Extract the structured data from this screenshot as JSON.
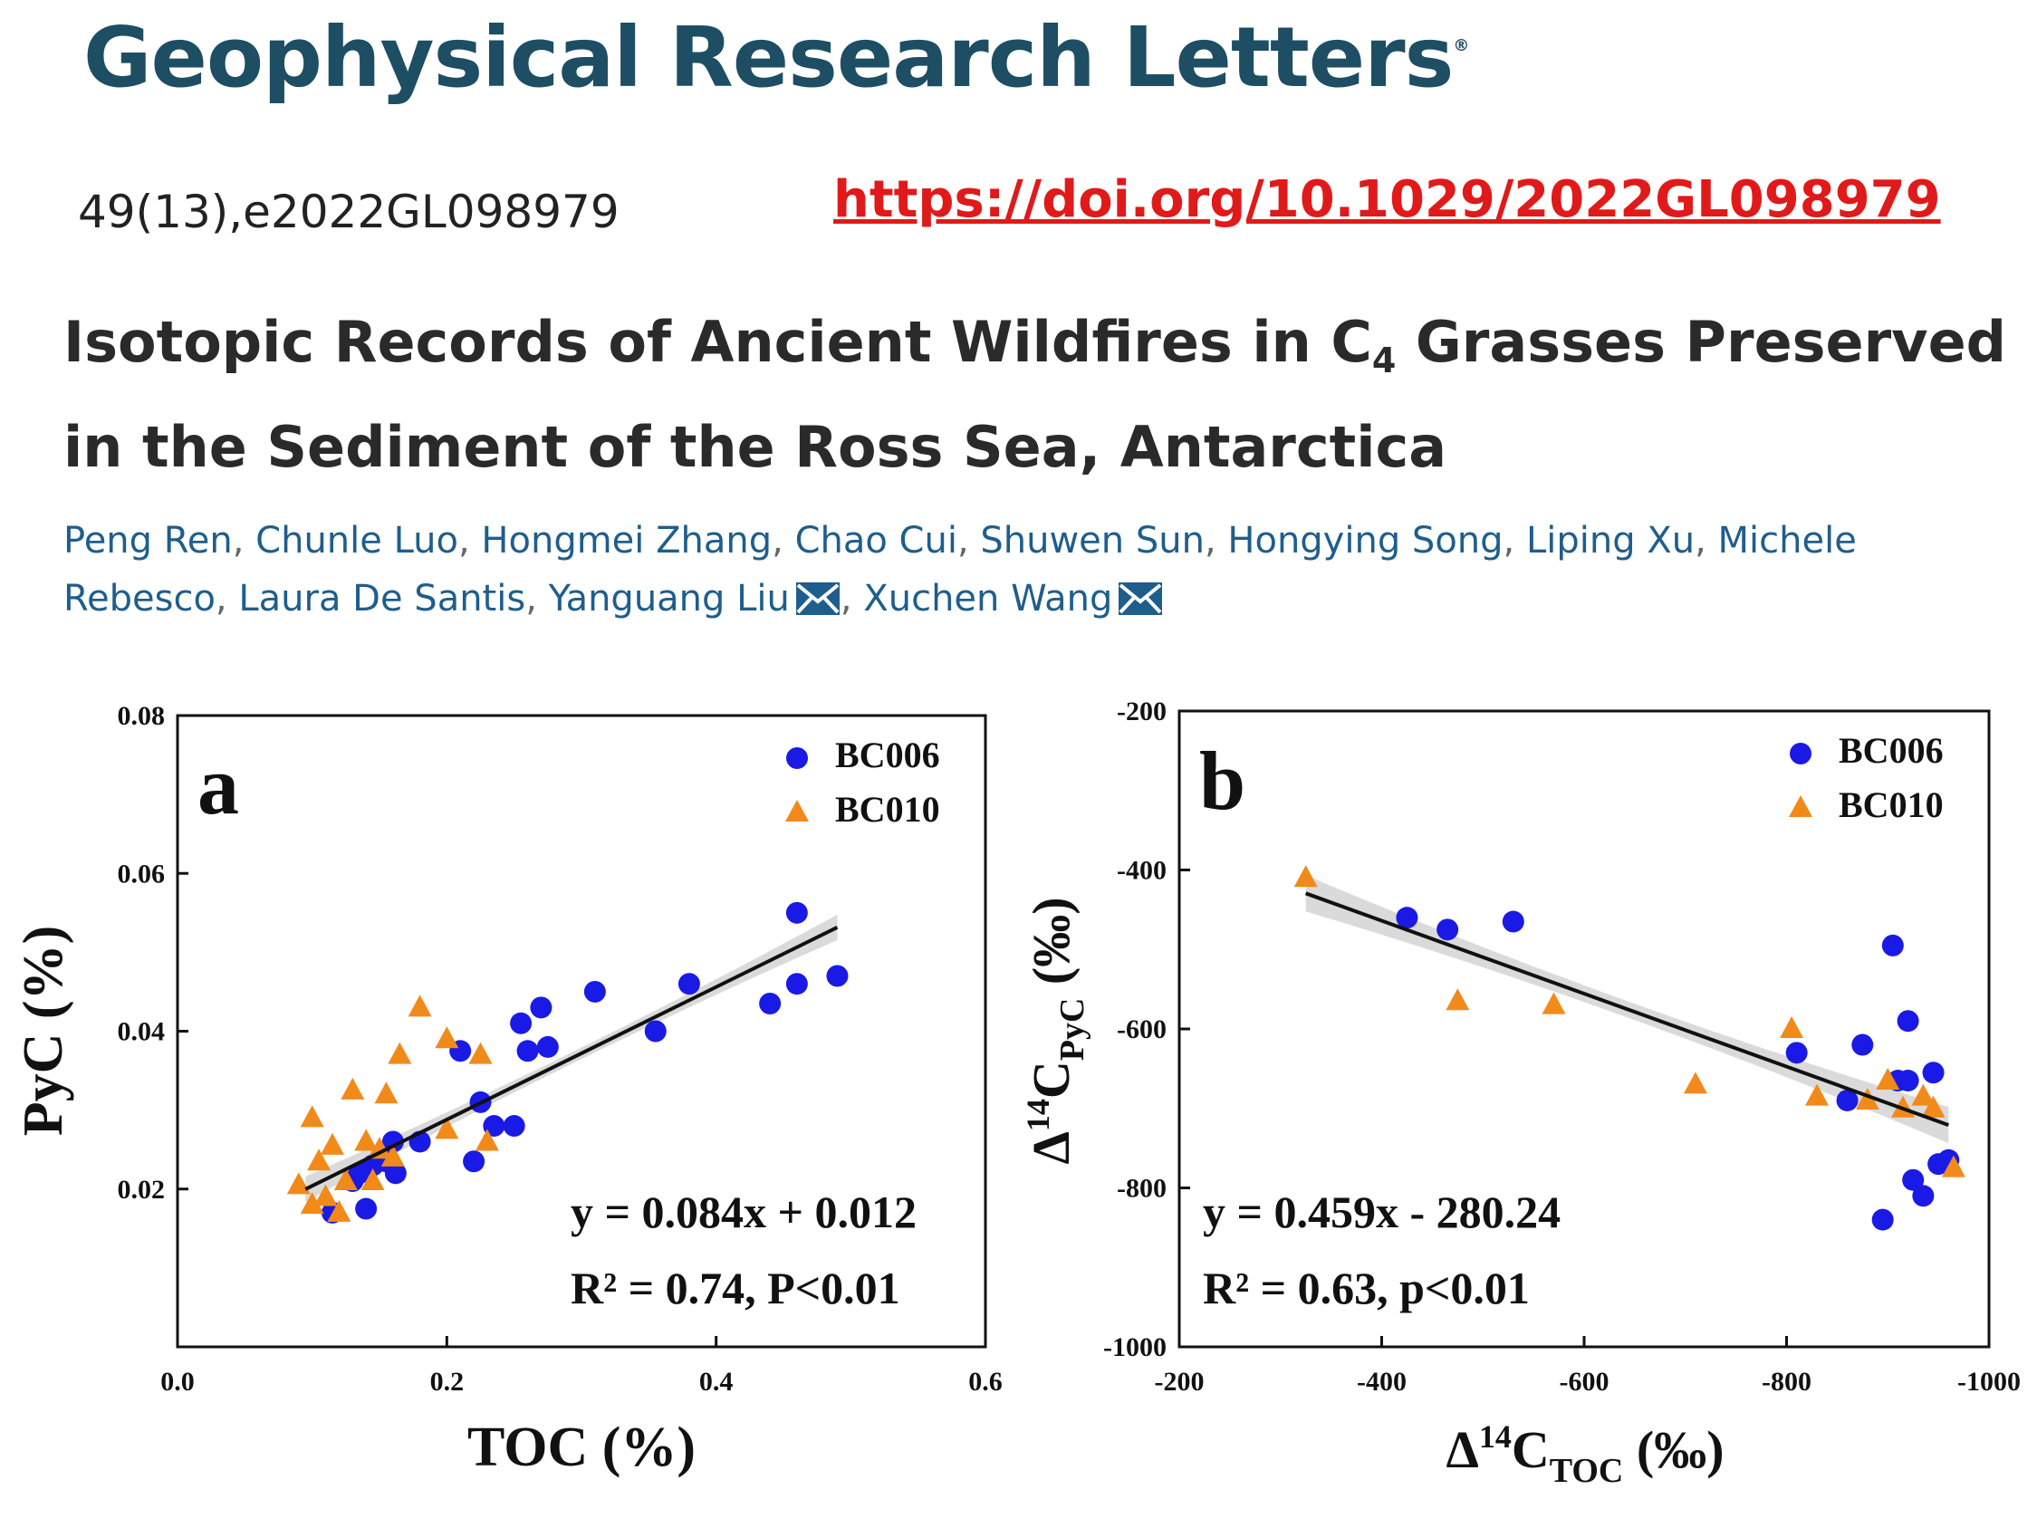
{
  "header": {
    "journal": "Geophysical Research Letters",
    "journal_mark": "®",
    "citation": "49(13),e2022GL098979",
    "doi": "https://doi.org/10.1029/2022GL098979"
  },
  "article": {
    "title_before": "Isotopic Records of Ancient Wildfires in C",
    "title_sub": "4",
    "title_after": " Grasses Preserved in the Sediment of the Ross Sea, Antarctica",
    "authors": [
      "Peng Ren",
      "Chunle Luo",
      "Hongmei Zhang",
      "Chao Cui",
      "Shuwen Sun",
      "Hongying Song",
      "Liping Xu",
      "Michele Rebesco",
      "Laura De Santis",
      "Yanguang Liu",
      "Xuchen Wang"
    ],
    "corresponding": [
      "Yanguang Liu",
      "Xuchen Wang"
    ],
    "icons": {
      "corresponding": "envelope-icon"
    },
    "colors": {
      "link": "#1e5e8c",
      "doi": "#e01a1a",
      "journal": "#1d4e63"
    }
  },
  "chart_data": [
    {
      "type": "scatter",
      "panel": "a",
      "xlabel": "TOC (%)",
      "ylabel": "PyC (%)",
      "xlim": [
        0.0,
        0.6
      ],
      "ylim": [
        0.0,
        0.08
      ],
      "xticks": [
        "0.0",
        "0.2",
        "0.4",
        "0.6"
      ],
      "yticks": [
        "0.02",
        "0.04",
        "0.06",
        "0.08"
      ],
      "legend": "top-right",
      "equation": "y = 0.084x + 0.012",
      "stats": "R² = 0.74, P<0.01",
      "fit": {
        "slope": 0.084,
        "intercept": 0.012,
        "x": [
          0.095,
          0.49
        ]
      },
      "series": [
        {
          "name": "BC006",
          "marker": "circle",
          "color": "#1a1ae6",
          "points": [
            [
              0.115,
              0.017
            ],
            [
              0.14,
              0.0175
            ],
            [
              0.13,
              0.021
            ],
            [
              0.135,
              0.022
            ],
            [
              0.145,
              0.023
            ],
            [
              0.155,
              0.0235
            ],
            [
              0.16,
              0.026
            ],
            [
              0.162,
              0.022
            ],
            [
              0.18,
              0.026
            ],
            [
              0.21,
              0.0375
            ],
            [
              0.22,
              0.0235
            ],
            [
              0.225,
              0.031
            ],
            [
              0.235,
              0.028
            ],
            [
              0.25,
              0.028
            ],
            [
              0.255,
              0.041
            ],
            [
              0.26,
              0.0375
            ],
            [
              0.27,
              0.043
            ],
            [
              0.275,
              0.038
            ],
            [
              0.31,
              0.045
            ],
            [
              0.355,
              0.04
            ],
            [
              0.38,
              0.046
            ],
            [
              0.44,
              0.0435
            ],
            [
              0.46,
              0.055
            ],
            [
              0.46,
              0.046
            ],
            [
              0.49,
              0.047
            ]
          ]
        },
        {
          "name": "BC010",
          "marker": "triangle",
          "color": "#f28a1a",
          "points": [
            [
              0.09,
              0.0205
            ],
            [
              0.1,
              0.029
            ],
            [
              0.1,
              0.018
            ],
            [
              0.105,
              0.0235
            ],
            [
              0.11,
              0.019
            ],
            [
              0.115,
              0.0255
            ],
            [
              0.12,
              0.017
            ],
            [
              0.125,
              0.021
            ],
            [
              0.13,
              0.0325
            ],
            [
              0.14,
              0.026
            ],
            [
              0.145,
              0.021
            ],
            [
              0.15,
              0.025
            ],
            [
              0.155,
              0.032
            ],
            [
              0.16,
              0.024
            ],
            [
              0.165,
              0.037
            ],
            [
              0.18,
              0.043
            ],
            [
              0.2,
              0.0275
            ],
            [
              0.2,
              0.039
            ],
            [
              0.225,
              0.037
            ],
            [
              0.23,
              0.026
            ]
          ]
        }
      ]
    },
    {
      "type": "scatter",
      "panel": "b",
      "xlabel": "Δ14CTOC (‰)",
      "ylabel": "Δ14CPyC (‰)",
      "xlim": [
        -200,
        -1000
      ],
      "ylim": [
        -1000,
        -200
      ],
      "xticks": [
        "-200",
        "-400",
        "-600",
        "-800",
        "-1000"
      ],
      "yticks": [
        "-200",
        "-400",
        "-600",
        "-800",
        "-1000"
      ],
      "legend": "top-right",
      "equation": "y = 0.459x - 280.24",
      "stats": "R² = 0.63, p<0.01",
      "fit": {
        "slope": 0.459,
        "intercept": -280.24,
        "x": [
          -325,
          -960
        ]
      },
      "series": [
        {
          "name": "BC006",
          "marker": "circle",
          "color": "#1a1ae6",
          "points": [
            [
              -425,
              -460
            ],
            [
              -465,
              -475
            ],
            [
              -530,
              -465
            ],
            [
              -810,
              -630
            ],
            [
              -860,
              -690
            ],
            [
              -875,
              -620
            ],
            [
              -895,
              -840
            ],
            [
              -905,
              -495
            ],
            [
              -910,
              -665
            ],
            [
              -920,
              -590
            ],
            [
              -920,
              -665
            ],
            [
              -925,
              -790
            ],
            [
              -935,
              -810
            ],
            [
              -945,
              -655
            ],
            [
              -950,
              -770
            ],
            [
              -960,
              -765
            ]
          ]
        },
        {
          "name": "BC010",
          "marker": "triangle",
          "color": "#f28a1a",
          "points": [
            [
              -325,
              -410
            ],
            [
              -475,
              -565
            ],
            [
              -570,
              -570
            ],
            [
              -710,
              -670
            ],
            [
              -805,
              -600
            ],
            [
              -830,
              -685
            ],
            [
              -880,
              -690
            ],
            [
              -900,
              -665
            ],
            [
              -915,
              -700
            ],
            [
              -935,
              -685
            ],
            [
              -945,
              -700
            ],
            [
              -965,
              -775
            ]
          ]
        }
      ]
    }
  ]
}
